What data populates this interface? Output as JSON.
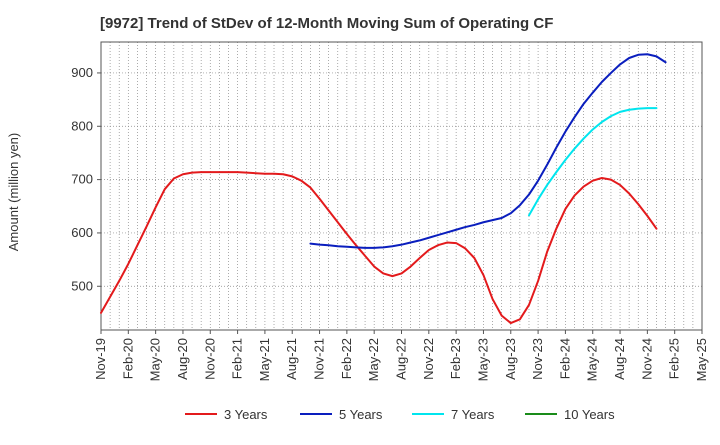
{
  "chart_data": {
    "type": "line",
    "title": "[9972]  Trend of StDev of 12-Month Moving Sum of Operating CF",
    "xlabel": "",
    "ylabel": "Amount (million yen)",
    "ylim": [
      418,
      958
    ],
    "y_ticks": [
      500,
      600,
      700,
      800,
      900
    ],
    "x_tick_labels": [
      "Nov-19",
      "Feb-20",
      "May-20",
      "Aug-20",
      "Nov-20",
      "Feb-21",
      "May-21",
      "Aug-21",
      "Nov-21",
      "Feb-22",
      "May-22",
      "Aug-22",
      "Nov-22",
      "Feb-23",
      "May-23",
      "Aug-23",
      "Nov-23",
      "Feb-24",
      "May-24",
      "Aug-24",
      "Nov-24",
      "Feb-25",
      "May-25"
    ],
    "x_range_months": [
      0,
      66
    ],
    "grid": true,
    "legend_position": "bottom",
    "series": [
      {
        "name": "3 Years",
        "color": "#e31a1c",
        "points": [
          [
            0,
            450
          ],
          [
            1,
            480
          ],
          [
            2,
            510
          ],
          [
            3,
            542
          ],
          [
            4,
            577
          ],
          [
            5,
            612
          ],
          [
            6,
            648
          ],
          [
            7,
            682
          ],
          [
            8,
            702
          ],
          [
            9,
            710
          ],
          [
            10,
            713
          ],
          [
            11,
            714
          ],
          [
            12,
            714
          ],
          [
            13,
            714
          ],
          [
            14,
            714
          ],
          [
            15,
            714
          ],
          [
            16,
            713
          ],
          [
            17,
            712
          ],
          [
            18,
            711
          ],
          [
            19,
            711
          ],
          [
            20,
            710
          ],
          [
            21,
            706
          ],
          [
            22,
            698
          ],
          [
            23,
            685
          ],
          [
            24,
            664
          ],
          [
            25,
            642
          ],
          [
            26,
            620
          ],
          [
            27,
            598
          ],
          [
            28,
            577
          ],
          [
            29,
            557
          ],
          [
            30,
            537
          ],
          [
            31,
            524
          ],
          [
            32,
            519
          ],
          [
            33,
            524
          ],
          [
            34,
            537
          ],
          [
            35,
            553
          ],
          [
            36,
            568
          ],
          [
            37,
            577
          ],
          [
            38,
            582
          ],
          [
            39,
            581
          ],
          [
            40,
            571
          ],
          [
            41,
            553
          ],
          [
            42,
            521
          ],
          [
            43,
            476
          ],
          [
            44,
            445
          ],
          [
            45,
            431
          ],
          [
            46,
            438
          ],
          [
            47,
            465
          ],
          [
            48,
            510
          ],
          [
            49,
            565
          ],
          [
            50,
            608
          ],
          [
            51,
            645
          ],
          [
            52,
            670
          ],
          [
            53,
            687
          ],
          [
            54,
            698
          ],
          [
            55,
            703
          ],
          [
            56,
            700
          ],
          [
            57,
            690
          ],
          [
            58,
            674
          ],
          [
            59,
            654
          ],
          [
            60,
            632
          ],
          [
            61,
            608
          ]
        ]
      },
      {
        "name": "5 Years",
        "color": "#0a1ebe",
        "points": [
          [
            23,
            580
          ],
          [
            24,
            578
          ],
          [
            25,
            577
          ],
          [
            26,
            575
          ],
          [
            27,
            574
          ],
          [
            28,
            573
          ],
          [
            29,
            572
          ],
          [
            30,
            572
          ],
          [
            31,
            573
          ],
          [
            32,
            575
          ],
          [
            33,
            578
          ],
          [
            34,
            582
          ],
          [
            35,
            586
          ],
          [
            36,
            591
          ],
          [
            37,
            596
          ],
          [
            38,
            601
          ],
          [
            39,
            606
          ],
          [
            40,
            611
          ],
          [
            41,
            615
          ],
          [
            42,
            620
          ],
          [
            43,
            624
          ],
          [
            44,
            628
          ],
          [
            45,
            637
          ],
          [
            46,
            652
          ],
          [
            47,
            672
          ],
          [
            48,
            698
          ],
          [
            49,
            728
          ],
          [
            50,
            760
          ],
          [
            51,
            790
          ],
          [
            52,
            817
          ],
          [
            53,
            842
          ],
          [
            54,
            863
          ],
          [
            55,
            883
          ],
          [
            56,
            900
          ],
          [
            57,
            916
          ],
          [
            58,
            928
          ],
          [
            59,
            934
          ],
          [
            60,
            935
          ],
          [
            61,
            931
          ],
          [
            62,
            920
          ]
        ]
      },
      {
        "name": "7 Years",
        "color": "#00e5ee",
        "points": [
          [
            47,
            633
          ],
          [
            48,
            663
          ],
          [
            49,
            690
          ],
          [
            50,
            714
          ],
          [
            51,
            737
          ],
          [
            52,
            758
          ],
          [
            53,
            777
          ],
          [
            54,
            794
          ],
          [
            55,
            808
          ],
          [
            56,
            819
          ],
          [
            57,
            827
          ],
          [
            58,
            831
          ],
          [
            59,
            833
          ],
          [
            60,
            834
          ],
          [
            61,
            834
          ]
        ]
      },
      {
        "name": "10 Years",
        "color": "#1a8c1a",
        "points": []
      }
    ]
  }
}
